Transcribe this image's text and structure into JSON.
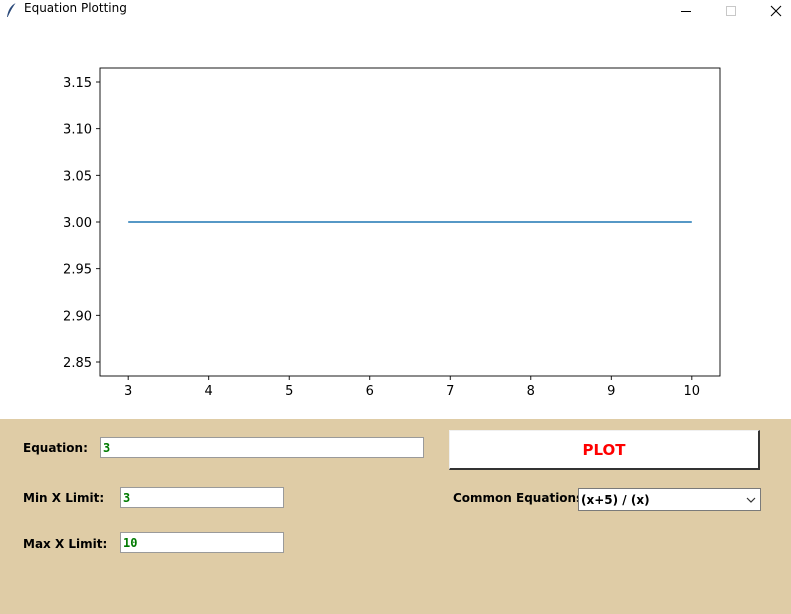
{
  "window": {
    "title": "Equation Plotting",
    "icons": {
      "app": "feather-icon",
      "minimize": "minimize-icon",
      "maximize": "maximize-icon",
      "close": "close-icon"
    }
  },
  "chart_data": {
    "type": "line",
    "x": [
      3,
      10
    ],
    "series": [
      {
        "values": [
          3.0,
          3.0
        ],
        "color": "#1f77b4"
      }
    ],
    "xlim": [
      2.65,
      10.35
    ],
    "ylim": [
      2.835,
      3.165
    ],
    "xticks": [
      "3",
      "4",
      "5",
      "6",
      "7",
      "8",
      "9",
      "10"
    ],
    "xtick_values": [
      3,
      4,
      5,
      6,
      7,
      8,
      9,
      10
    ],
    "yticks": [
      "2.85",
      "2.90",
      "2.95",
      "3.00",
      "3.05",
      "3.10",
      "3.15"
    ],
    "ytick_values": [
      2.85,
      2.9,
      2.95,
      3.0,
      3.05,
      3.1,
      3.15
    ],
    "grid": false
  },
  "controls": {
    "equation_label": "Equation:",
    "equation_value": "3",
    "min_x_label": "Min X Limit:",
    "min_x_value": "3",
    "max_x_label": "Max X Limit:",
    "max_x_value": "10",
    "plot_button_label": "PLOT",
    "common_equations_label": "Common Equations:",
    "common_equations_selected": "(x+5) / (x)"
  },
  "colors": {
    "panel_bg": "#dfcca6",
    "entry_text": "#007a00",
    "plot_button_text": "#ff0000",
    "line": "#1f77b4"
  }
}
